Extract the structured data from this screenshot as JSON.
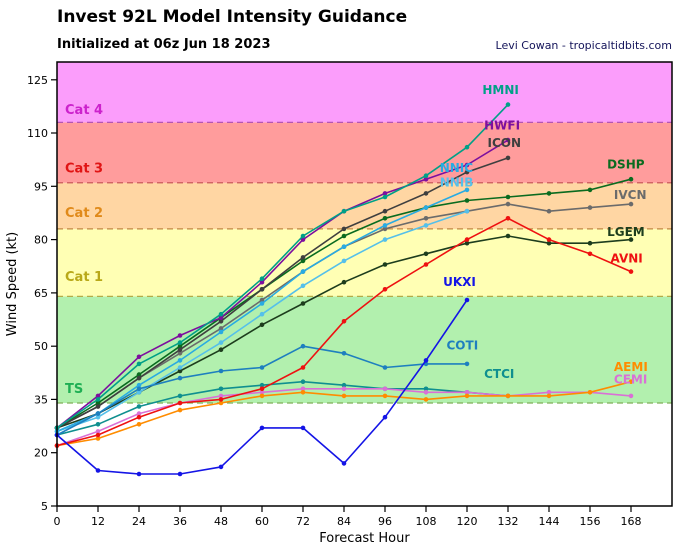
{
  "chart_data": {
    "type": "line",
    "title": "Invest 92L Model Intensity Guidance",
    "subtitle": "Initialized at 06z Jun 18 2023",
    "credit": "Levi Cowan - tropicaltidbits.com",
    "xlabel": "Forecast Hour",
    "ylabel": "Wind Speed (kt)",
    "xlim": [
      0,
      180
    ],
    "ylim": [
      5,
      130
    ],
    "xticks": [
      0,
      12,
      24,
      36,
      48,
      60,
      72,
      84,
      96,
      108,
      120,
      132,
      144,
      156,
      168
    ],
    "yticks": [
      5,
      20,
      35,
      50,
      65,
      80,
      95,
      110,
      125
    ],
    "x": [
      0,
      12,
      24,
      36,
      48,
      60,
      72,
      84,
      96,
      108,
      120,
      132,
      144,
      156,
      168
    ],
    "bands": [
      {
        "name": "TS",
        "from": 34,
        "to": 64,
        "color": "#b2f0ae",
        "line_color": "#7fae57",
        "label_color": "#1faf54",
        "label_kt": 38
      },
      {
        "name": "Cat 1",
        "from": 64,
        "to": 83,
        "color": "#ffffb4",
        "line_color": "#b3ab48",
        "label_color": "#b8a818",
        "label_kt": 69.5
      },
      {
        "name": "Cat 2",
        "from": 83,
        "to": 96,
        "color": "#ffd6a3",
        "line_color": "#c28a45",
        "label_color": "#e08a1a",
        "label_kt": 87.5
      },
      {
        "name": "Cat 3",
        "from": 96,
        "to": 113,
        "color": "#ff9c9c",
        "line_color": "#c25252",
        "label_color": "#e01414",
        "label_kt": 100
      },
      {
        "name": "Cat 4",
        "from": 113,
        "to": 130,
        "color": "#fb9dfb",
        "line_color": "#b455b4",
        "label_color": "#cc22cc",
        "label_kt": 116.5
      }
    ],
    "series": [
      {
        "name": "IVCN",
        "color": "#6b6b6b",
        "label_x": 163,
        "label_y": 91.5,
        "values": [
          27,
          33,
          41,
          48,
          55,
          63,
          71,
          78,
          83,
          86,
          88,
          90,
          88,
          89,
          90
        ]
      },
      {
        "name": "LGEM",
        "color": "#1d3d1d",
        "label_x": 161,
        "label_y": 81,
        "values": [
          27,
          31,
          37,
          43,
          49,
          56,
          62,
          68,
          73,
          76,
          79,
          81,
          79,
          79,
          80
        ]
      },
      {
        "name": "DSHP",
        "color": "#0a6b1f",
        "label_x": 161,
        "label_y": 100,
        "values": [
          27,
          34,
          42,
          50,
          58,
          66,
          74,
          81,
          86,
          89,
          91,
          92,
          93,
          94,
          97
        ]
      },
      {
        "name": "ICON",
        "color": "#3f3f3f",
        "label_x": 126,
        "label_y": 106,
        "values": [
          27,
          33,
          41,
          49,
          57,
          66,
          75,
          83,
          88,
          93,
          99,
          103,
          null,
          null,
          null
        ]
      },
      {
        "name": "NNIB",
        "color": "#55c0ea",
        "label_x": 112,
        "label_y": 95,
        "values": [
          26,
          30,
          37,
          44,
          51,
          59,
          67,
          74,
          80,
          84,
          88,
          null,
          null,
          null,
          null
        ]
      },
      {
        "name": "NNIC",
        "color": "#29abe2",
        "label_x": 112,
        "label_y": 99,
        "values": [
          26,
          31,
          39,
          46,
          54,
          62,
          71,
          78,
          84,
          89,
          94,
          null,
          null,
          null,
          null
        ]
      },
      {
        "name": "CTCI",
        "color": "#0f8f8f",
        "label_x": 125,
        "label_y": 41,
        "values": [
          25,
          28,
          33,
          36,
          38,
          39,
          40,
          39,
          38,
          38,
          37,
          36,
          null,
          null,
          null
        ]
      },
      {
        "name": "COTI",
        "color": "#1e7fbf",
        "label_x": 114,
        "label_y": 49,
        "values": [
          25,
          31,
          38,
          41,
          43,
          44,
          50,
          48,
          44,
          45,
          45,
          null,
          null,
          null,
          null
        ]
      },
      {
        "name": "CEMI",
        "color": "#da70d6",
        "label_x": 163,
        "label_y": 39.5,
        "values": [
          22,
          26,
          31,
          34,
          36,
          37,
          38,
          38,
          38,
          37,
          37,
          36,
          37,
          37,
          36
        ]
      },
      {
        "name": "AEMI",
        "color": "#ff8c00",
        "label_x": 163,
        "label_y": 43,
        "values": [
          22,
          24,
          28,
          32,
          34,
          36,
          37,
          36,
          36,
          35,
          36,
          36,
          36,
          37,
          40
        ]
      },
      {
        "name": "HWFI",
        "color": "#7d0f9e",
        "label_x": 125,
        "label_y": 111,
        "values": [
          27,
          36,
          47,
          53,
          58,
          68,
          80,
          88,
          93,
          97,
          101,
          108,
          null,
          null,
          null
        ]
      },
      {
        "name": "HMNI",
        "color": "#00a087",
        "label_x": 124.5,
        "label_y": 121,
        "values": [
          27,
          35,
          45,
          51,
          59,
          69,
          81,
          88,
          92,
          98,
          106,
          118,
          null,
          null,
          null
        ]
      },
      {
        "name": "AVNI",
        "color": "#ee1111",
        "label_x": 162,
        "label_y": 73.5,
        "values": [
          22,
          25,
          30,
          34,
          35,
          38,
          44,
          57,
          66,
          73,
          80,
          86,
          80,
          76,
          71
        ]
      },
      {
        "name": "UKXI",
        "color": "#1414e6",
        "label_x": 113,
        "label_y": 67,
        "values": [
          25,
          15,
          14,
          14,
          16,
          27,
          27,
          17,
          30,
          46,
          63,
          null,
          null,
          null,
          null
        ]
      }
    ]
  }
}
